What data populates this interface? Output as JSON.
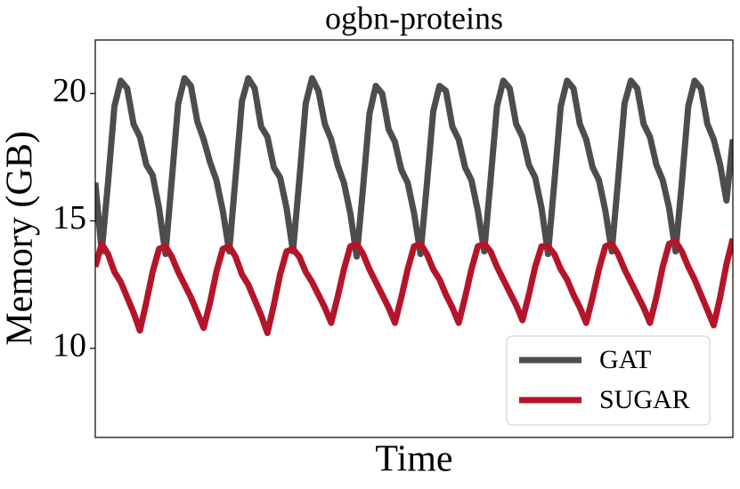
{
  "chart_data": {
    "type": "line",
    "title": "ogbn-proteins",
    "xlabel": "Time",
    "ylabel": "Memory (GB)",
    "x": [
      0,
      1,
      2,
      3,
      4,
      5,
      6,
      7,
      8,
      9,
      10,
      11,
      12,
      13,
      14,
      15,
      16,
      17,
      18,
      19,
      20,
      21,
      22,
      23,
      24,
      25,
      26,
      27,
      28,
      29,
      30,
      31,
      32,
      33,
      34,
      35,
      36,
      37,
      38,
      39,
      40,
      41,
      42,
      43,
      44,
      45,
      46,
      47,
      48,
      49,
      50,
      51,
      52,
      53,
      54,
      55,
      56,
      57,
      58,
      59,
      60,
      61,
      62,
      63,
      64,
      65,
      66,
      67,
      68,
      69,
      70,
      71,
      72,
      73,
      74,
      75,
      76,
      77,
      78,
      79,
      80,
      81,
      82,
      83,
      84,
      85,
      86,
      87,
      88,
      89,
      90,
      91,
      92,
      93,
      94,
      95,
      96,
      97,
      98,
      99,
      100
    ],
    "xlim": [
      0,
      100
    ],
    "ylim": [
      6.5,
      22.1
    ],
    "yticks": [
      10,
      15,
      20
    ],
    "legend": "lower right",
    "series": [
      {
        "name": "GAT",
        "color": "#4d4d4d",
        "values": [
          16.5,
          13.8,
          16.5,
          19.5,
          20.5,
          20.2,
          18.8,
          18.3,
          17.2,
          16.8,
          15.5,
          13.7,
          16.6,
          19.6,
          20.6,
          20.3,
          18.9,
          18.2,
          17.3,
          16.6,
          15.4,
          13.8,
          16.7,
          19.7,
          20.6,
          20.2,
          18.7,
          18.3,
          17.1,
          16.7,
          15.5,
          13.8,
          16.6,
          19.6,
          20.6,
          20.1,
          18.8,
          18.2,
          17.2,
          16.5,
          15.3,
          13.6,
          16.3,
          19.2,
          20.3,
          20.0,
          18.6,
          18.1,
          17.0,
          16.5,
          15.3,
          13.7,
          16.4,
          19.3,
          20.3,
          20.1,
          18.7,
          18.2,
          17.1,
          16.6,
          15.4,
          13.8,
          16.6,
          19.5,
          20.5,
          20.2,
          18.8,
          18.3,
          17.2,
          16.7,
          15.5,
          13.7,
          16.5,
          19.5,
          20.5,
          20.2,
          18.8,
          18.2,
          17.1,
          16.6,
          15.4,
          13.8,
          16.6,
          19.6,
          20.5,
          20.2,
          18.8,
          18.3,
          17.2,
          16.6,
          15.5,
          13.8,
          16.5,
          19.5,
          20.5,
          20.2,
          18.8,
          18.2,
          17.2,
          15.8,
          18.2
        ]
      },
      {
        "name": "SUGAR",
        "color": "#b5152b",
        "values": [
          13.2,
          14.1,
          13.7,
          13.0,
          12.6,
          12.0,
          11.4,
          10.7,
          11.8,
          13.0,
          13.9,
          14.0,
          13.6,
          13.0,
          12.5,
          12.0,
          11.4,
          10.8,
          11.8,
          13.0,
          13.9,
          14.0,
          13.6,
          12.9,
          12.5,
          11.9,
          11.3,
          10.6,
          11.7,
          12.9,
          13.8,
          13.9,
          13.6,
          13.0,
          12.6,
          12.1,
          11.6,
          11.0,
          12.0,
          13.1,
          14.0,
          14.1,
          13.7,
          13.1,
          12.6,
          12.1,
          11.6,
          11.0,
          12.0,
          13.1,
          14.0,
          14.1,
          13.7,
          13.1,
          12.7,
          12.1,
          11.6,
          11.0,
          12.0,
          13.1,
          14.0,
          14.1,
          13.8,
          13.2,
          12.7,
          12.2,
          11.7,
          11.1,
          12.1,
          13.2,
          14.0,
          14.0,
          13.7,
          13.1,
          12.7,
          12.1,
          11.6,
          11.0,
          12.0,
          13.1,
          14.0,
          14.1,
          13.7,
          13.1,
          12.6,
          12.1,
          11.6,
          11.0,
          12.0,
          13.2,
          14.1,
          14.2,
          13.8,
          13.2,
          12.7,
          12.1,
          11.5,
          10.9,
          12.0,
          13.3,
          14.3
        ]
      }
    ]
  }
}
